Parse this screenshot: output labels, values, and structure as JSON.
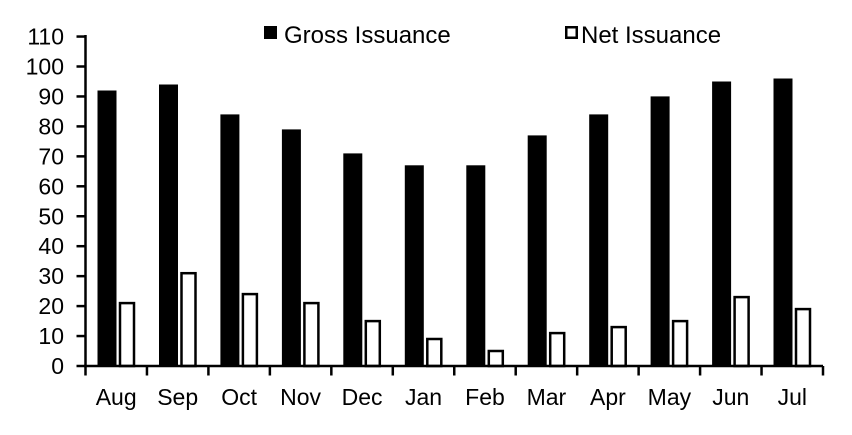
{
  "chart_data": {
    "type": "bar",
    "title": "",
    "xlabel": "",
    "ylabel": "",
    "categories": [
      "Aug",
      "Sep",
      "Oct",
      "Nov",
      "Dec",
      "Jan",
      "Feb",
      "Mar",
      "Apr",
      "May",
      "Jun",
      "Jul"
    ],
    "series": [
      {
        "name": "Gross Issuance",
        "values": [
          92,
          94,
          84,
          79,
          71,
          67,
          67,
          77,
          84,
          90,
          95,
          96
        ],
        "fill": "#000000",
        "stroke": "#000000"
      },
      {
        "name": "Net Issuance",
        "values": [
          21,
          31,
          24,
          21,
          15,
          9,
          5,
          11,
          13,
          15,
          23,
          19
        ],
        "fill": "#FFFFFF",
        "stroke": "#000000"
      }
    ],
    "ylim": [
      0,
      110
    ],
    "ytick_step": 10,
    "ytick_labels": [
      "0",
      "10",
      "20",
      "30",
      "40",
      "50",
      "60",
      "70",
      "80",
      "90",
      "100",
      "110"
    ],
    "legend_position": "top",
    "grid": false,
    "axis_color": "#000000",
    "background_color": "#FFFFFF"
  }
}
